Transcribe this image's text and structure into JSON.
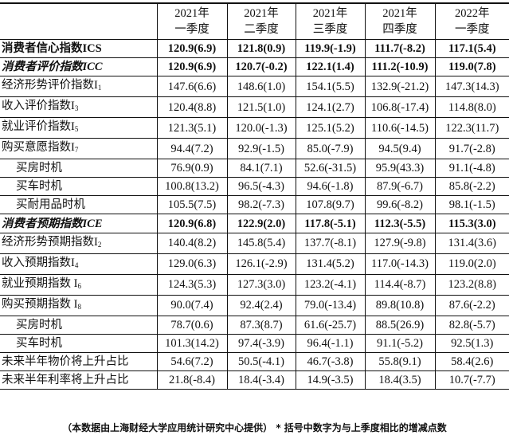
{
  "headers": [
    {
      "year": "2021年",
      "quarter": "一季度"
    },
    {
      "year": "2021年",
      "quarter": "二季度"
    },
    {
      "year": "2021年",
      "quarter": "三季度"
    },
    {
      "year": "2021年",
      "quarter": "四季度"
    },
    {
      "year": "2022年",
      "quarter": "一季度"
    }
  ],
  "rows": [
    {
      "label": "消费者信心指数ICS",
      "sub": "",
      "style": "bold",
      "values": [
        "120.9(6.9)",
        "121.8(0.9)",
        "119.9(-1.9)",
        "111.7(-8.2)",
        "117.1(5.4)"
      ]
    },
    {
      "label": "消费者评价指数ICC",
      "sub": "",
      "style": "bold ital",
      "values": [
        "120.9(6.9)",
        "120.7(-0.2)",
        "122.1(1.4)",
        "111.2(-10.9)",
        "119.0(7.8)"
      ]
    },
    {
      "label": "经济形势评价指数I",
      "sub": "1",
      "style": "",
      "values": [
        "147.6(6.6)",
        "148.6(1.0)",
        "154.1(5.5)",
        "132.9(-21.2)",
        "147.3(14.3)"
      ]
    },
    {
      "label": "收入评价指数I",
      "sub": "3",
      "style": "",
      "values": [
        "120.4(8.8)",
        "121.5(1.0)",
        "124.1(2.7)",
        "106.8(-17.4)",
        "114.8(8.0)"
      ]
    },
    {
      "label": "就业评价指数I",
      "sub": "5",
      "style": "",
      "values": [
        "121.3(5.1)",
        "120.0(-1.3)",
        "125.1(5.2)",
        "110.6(-14.5)",
        "122.3(11.7)"
      ]
    },
    {
      "label": "购买意愿指数I",
      "sub": "7",
      "style": "",
      "values": [
        "94.4(7.2)",
        "92.9(-1.5)",
        "85.0(-7.9)",
        "94.5(9.4)",
        "91.7(-2.8)"
      ]
    },
    {
      "label": "买房时机",
      "sub": "",
      "style": "ind",
      "values": [
        "76.9(0.9)",
        "84.1(7.1)",
        "52.6(-31.5)",
        "95.9(43.3)",
        "91.1(-4.8)"
      ]
    },
    {
      "label": "买车时机",
      "sub": "",
      "style": "ind",
      "values": [
        "100.8(13.2)",
        "96.5(-4.3)",
        "94.6(-1.8)",
        "87.9(-6.7)",
        "85.8(-2.2)"
      ]
    },
    {
      "label": "买耐用品时机",
      "sub": "",
      "style": "ind",
      "values": [
        "105.5(7.5)",
        "98.2(-7.3)",
        "107.8(9.7)",
        "99.6(-8.2)",
        "98.1(-1.5)"
      ]
    },
    {
      "label": "消费者预期指数ICE",
      "sub": "",
      "style": "bold ital",
      "values": [
        "120.9(6.8)",
        "122.9(2.0)",
        "117.8(-5.1)",
        "112.3(-5.5)",
        "115.3(3.0)"
      ]
    },
    {
      "label": "经济形势预期指数I",
      "sub": "2",
      "style": "",
      "values": [
        "140.4(8.2)",
        "145.8(5.4)",
        "137.7(-8.1)",
        "127.9(-9.8)",
        "131.4(3.6)"
      ]
    },
    {
      "label": "收入预期指数I",
      "sub": "4",
      "style": "",
      "values": [
        "129.0(6.3)",
        "126.1(-2.9)",
        "131.4(5.2)",
        "117.0(-14.3)",
        "119.0(2.0)"
      ]
    },
    {
      "label": "就业预期指数 I",
      "sub": "6",
      "style": "",
      "values": [
        "124.3(5.3)",
        "127.3(3.0)",
        "123.2(-4.1)",
        "114.4(-8.7)",
        "123.2(8.8)"
      ]
    },
    {
      "label": "购买预期指数 I",
      "sub": "8",
      "style": "",
      "values": [
        "90.0(7.4)",
        "92.4(2.4)",
        "79.0(-13.4)",
        "89.8(10.8)",
        "87.6(-2.2)"
      ]
    },
    {
      "label": "买房时机",
      "sub": "",
      "style": "ind",
      "values": [
        "78.7(0.6)",
        "87.3(8.7)",
        "61.6(-25.7)",
        "88.5(26.9)",
        "82.8(-5.7)"
      ]
    },
    {
      "label": "买车时机",
      "sub": "",
      "style": "ind",
      "values": [
        "101.3(14.2)",
        "97.4(-3.9)",
        "96.4(-1.1)",
        "91.1(-5.2)",
        "92.5(1.3)"
      ]
    },
    {
      "label": "未来半年物价将上升占比",
      "sub": "",
      "style": "",
      "values": [
        "54.6(7.2)",
        "50.5(-4.1)",
        "46.7(-3.8)",
        "55.8(9.1)",
        "58.4(2.6)"
      ]
    },
    {
      "label": "未来半年利率将上升占比",
      "sub": "",
      "style": "",
      "values": [
        "21.8(-8.4)",
        "18.4(-3.4)",
        "14.9(-3.5)",
        "18.4(3.5)",
        "10.7(-7.7)"
      ]
    }
  ],
  "footer": "（本数据由上海财经大学应用统计研究中心提供） * 括号中数字为与上季度相比的增减点数"
}
